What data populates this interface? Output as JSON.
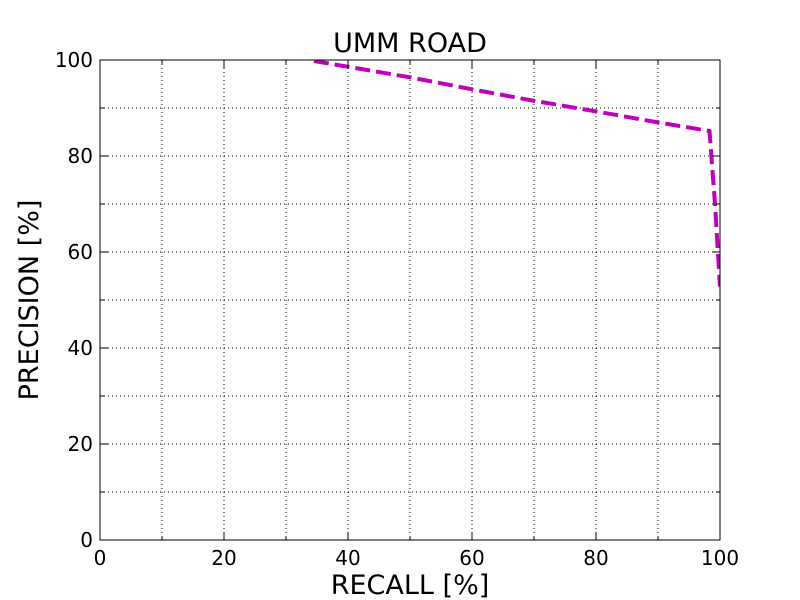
{
  "chart_data": {
    "type": "line",
    "title": "UMM ROAD",
    "xlabel": "RECALL [%]",
    "ylabel": "PRECISION [%]",
    "xlim": [
      0,
      100
    ],
    "ylim": [
      0,
      100
    ],
    "x_ticks": [
      0,
      20,
      40,
      60,
      80,
      100
    ],
    "y_ticks": [
      0,
      20,
      40,
      60,
      80,
      100
    ],
    "x_tick_labels": [
      "0",
      "20",
      "40",
      "60",
      "80",
      "100"
    ],
    "y_tick_labels": [
      "0",
      "20",
      "40",
      "60",
      "80",
      "100"
    ],
    "x_minor_ticks": [
      10,
      30,
      50,
      70,
      90
    ],
    "y_minor_ticks": [
      10,
      30,
      50,
      70,
      90
    ],
    "grid": true,
    "legend": "none",
    "series": [
      {
        "color": "#bf00bf",
        "line_style": "dashed",
        "x": [
          34.5,
          50,
          60,
          70,
          80,
          90,
          98.3,
          99.2,
          100
        ],
        "y": [
          99.8,
          96.4,
          93.9,
          91.5,
          89.3,
          87.0,
          85.2,
          70.0,
          52.8
        ]
      }
    ]
  }
}
